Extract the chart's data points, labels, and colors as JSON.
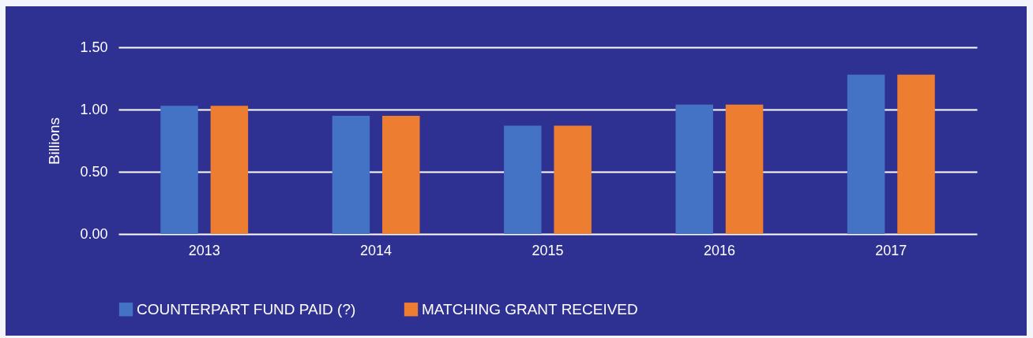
{
  "chart_data": {
    "type": "bar",
    "ylabel": "Billions",
    "categories": [
      "2013",
      "2014",
      "2015",
      "2016",
      "2017"
    ],
    "series": [
      {
        "name": "COUNTERPART FUND PAID (?)",
        "color": "#4472c4",
        "values": [
          1.03,
          0.95,
          0.87,
          1.04,
          1.28
        ]
      },
      {
        "name": "MATCHING GRANT RECEIVED",
        "color": "#ed7d31",
        "values": [
          1.03,
          0.95,
          0.87,
          1.04,
          1.28
        ]
      }
    ],
    "ylim": [
      0,
      1.5
    ],
    "yticks": [
      {
        "value": 0,
        "label": "0.00"
      },
      {
        "value": 0.5,
        "label": "0.50"
      },
      {
        "value": 1,
        "label": "1.00"
      },
      {
        "value": 1.5,
        "label": "1.50"
      }
    ],
    "grid": "y",
    "legend": "bottom"
  }
}
